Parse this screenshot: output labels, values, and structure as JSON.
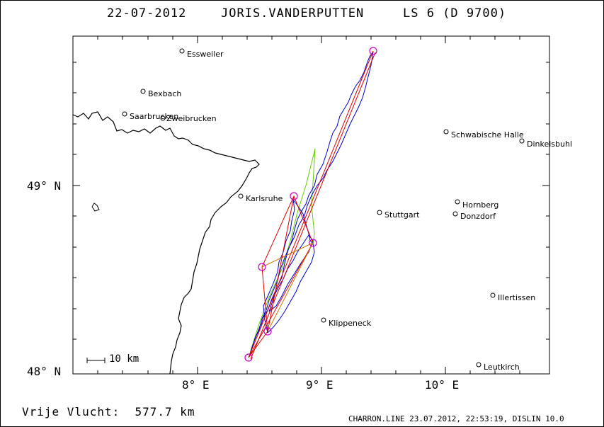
{
  "header": {
    "date": "22-07-2012",
    "pilot": "JORIS.VANDERPUTTEN",
    "glider": "LS 6 (D 9700)"
  },
  "axes": {
    "lat_labels": [
      "49° N",
      "48° N"
    ],
    "lon_labels": [
      "8° E",
      "9° E",
      "10° E"
    ]
  },
  "scale": {
    "label": "10 km"
  },
  "footer": {
    "distance": "Vrije Vlucht:  577.7 km",
    "credits": "CHARRON.LINE 23.07.2012, 22:53:19, DISLIN 10.0"
  },
  "towns": [
    {
      "name": "Essweiler"
    },
    {
      "name": "Bexbach"
    },
    {
      "name": "Saarbrucken"
    },
    {
      "name": "Zweibrucken"
    },
    {
      "name": "Schwabische Halle"
    },
    {
      "name": "Dinkelsbuhl"
    },
    {
      "name": "Karlsruhe"
    },
    {
      "name": "Hornberg"
    },
    {
      "name": "Stuttgart"
    },
    {
      "name": "Donzdorf"
    },
    {
      "name": "Illertissen"
    },
    {
      "name": "Klippeneck"
    },
    {
      "name": "Leutkirch"
    }
  ],
  "colors": {
    "border": "#000000",
    "track": "#0000cc",
    "task_line": "#dd0000",
    "task_line_alt": "#cc7700",
    "engine_line": "#66cc00",
    "turnpoint": "#cc00cc"
  }
}
